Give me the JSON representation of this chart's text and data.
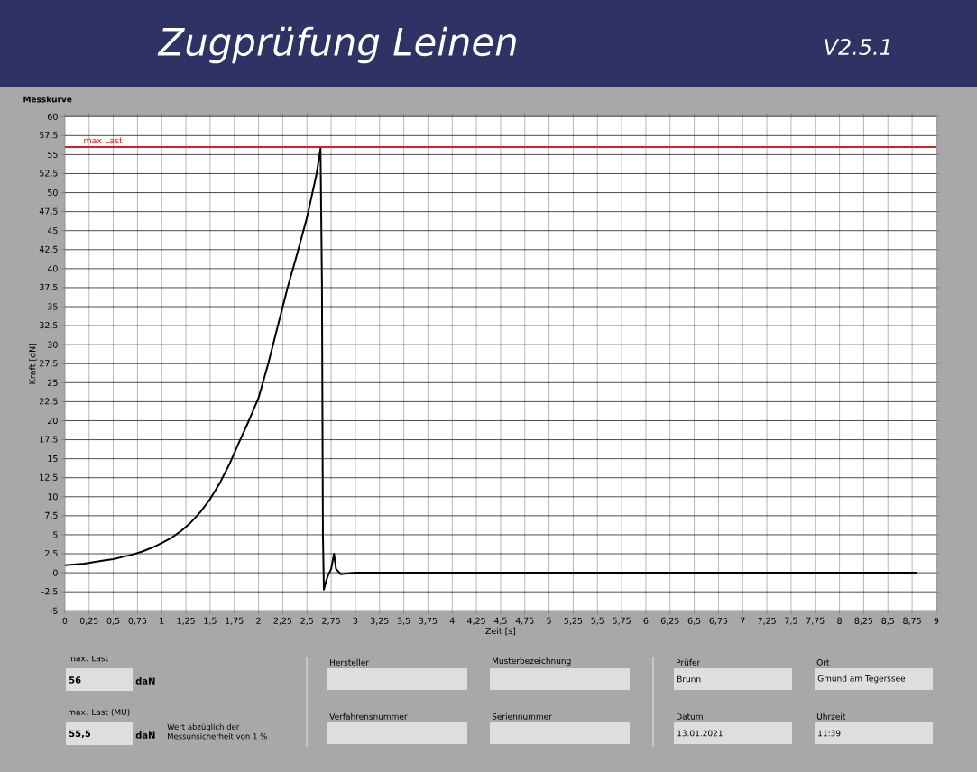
{
  "chart_data": {
    "type": "line",
    "title": "Zugprüfung Leinen",
    "subtitle": "Messkurve",
    "xlabel": "Zeit [s]",
    "ylabel": "Kraft [dN]",
    "xlim": [
      0,
      9
    ],
    "ylim": [
      -5,
      60
    ],
    "xticks": [
      0,
      {
        "value": 0.25,
        "label": "0,25"
      },
      {
        "value": 0.5,
        "label": "0,5"
      },
      {
        "value": 0.75,
        "label": "0,75"
      },
      1,
      {
        "value": 1.25,
        "label": "1,25"
      },
      {
        "value": 1.5,
        "label": "1,5"
      },
      {
        "value": 1.75,
        "label": "1,75"
      },
      2,
      {
        "value": 2.25,
        "label": "2,25"
      },
      {
        "value": 2.5,
        "label": "2,5"
      },
      {
        "value": 2.75,
        "label": "2,75"
      },
      3,
      {
        "value": 3.25,
        "label": "3,25"
      },
      {
        "value": 3.5,
        "label": "3,5"
      },
      {
        "value": 3.75,
        "label": "3,75"
      },
      4,
      {
        "value": 4.25,
        "label": "4,25"
      },
      {
        "value": 4.5,
        "label": "4,5"
      },
      {
        "value": 4.75,
        "label": "4,75"
      },
      5,
      {
        "value": 5.25,
        "label": "5,25"
      },
      {
        "value": 5.5,
        "label": "5,5"
      },
      {
        "value": 5.75,
        "label": "5,75"
      },
      6,
      {
        "value": 6.25,
        "label": "6,25"
      },
      {
        "value": 6.5,
        "label": "6,5"
      },
      {
        "value": 6.75,
        "label": "6,75"
      },
      7,
      {
        "value": 7.25,
        "label": "7,25"
      },
      {
        "value": 7.5,
        "label": "7,5"
      },
      {
        "value": 7.75,
        "label": "7,75"
      },
      8,
      {
        "value": 8.25,
        "label": "8,25"
      },
      {
        "value": 8.5,
        "label": "8,5"
      },
      {
        "value": 8.75,
        "label": "8,75"
      },
      9
    ],
    "yticks": [
      -5,
      {
        "value": -2.5,
        "label": "-2,5"
      },
      0,
      {
        "value": 2.5,
        "label": "2,5"
      },
      5,
      {
        "value": 7.5,
        "label": "7,5"
      },
      10,
      {
        "value": 12.5,
        "label": "12,5"
      },
      15,
      {
        "value": 17.5,
        "label": "17,5"
      },
      20,
      {
        "value": 22.5,
        "label": "22,5"
      },
      25,
      {
        "value": 27.5,
        "label": "27,5"
      },
      30,
      {
        "value": 32.5,
        "label": "32,5"
      },
      35,
      {
        "value": 37.5,
        "label": "37,5"
      },
      40,
      {
        "value": 42.5,
        "label": "42,5"
      },
      45,
      {
        "value": 47.5,
        "label": "47,5"
      },
      50,
      {
        "value": 52.5,
        "label": "52,5"
      },
      55,
      {
        "value": 57.5,
        "label": "57,5"
      },
      60
    ],
    "grid": true,
    "marker": "none",
    "line_style": "solid",
    "series": [
      {
        "color": "#000000",
        "x": [
          0,
          0.1,
          0.2,
          0.3,
          0.4,
          0.5,
          0.6,
          0.7,
          0.8,
          0.9,
          1.0,
          1.1,
          1.2,
          1.3,
          1.4,
          1.5,
          1.6,
          1.7,
          1.8,
          1.9,
          2.0,
          2.1,
          2.2,
          2.3,
          2.4,
          2.5,
          2.6,
          2.64,
          2.655,
          2.665,
          2.675,
          2.7,
          2.72,
          2.75,
          2.78,
          2.8,
          2.85,
          3,
          4,
          5,
          6,
          7,
          8,
          8.8
        ],
        "values": [
          1,
          1.1,
          1.2,
          1.4,
          1.6,
          1.8,
          2.1,
          2.4,
          2.8,
          3.3,
          3.9,
          4.6,
          5.5,
          6.6,
          8,
          9.7,
          11.8,
          14.3,
          17.2,
          20,
          23,
          27.5,
          32.5,
          37.5,
          42,
          46.7,
          52.5,
          55.8,
          38,
          5,
          -2.2,
          -1,
          -0.3,
          0.5,
          2.5,
          0.5,
          -0.2,
          0,
          0,
          0,
          0,
          0,
          0,
          0
        ]
      }
    ],
    "ref_lines": [
      {
        "axis": "y",
        "value": 56,
        "label": "max Last",
        "color": "#d42020"
      }
    ],
    "annotations": [
      "V2.5.1",
      "max. Last",
      "56",
      "daN",
      "max. Last (MU)",
      "55,5",
      "daN",
      "Wert abzüglich der Messunsicherheit von 1 %",
      "Hersteller",
      "Musterbezeichnung",
      "Verfahrensnummer",
      "Seriennummer",
      "Prüfer",
      "Brunn",
      "Ort",
      "Gmund am Tegerssee",
      "Datum",
      "13.01.2021",
      "Uhrzeit",
      "11:39"
    ]
  }
}
